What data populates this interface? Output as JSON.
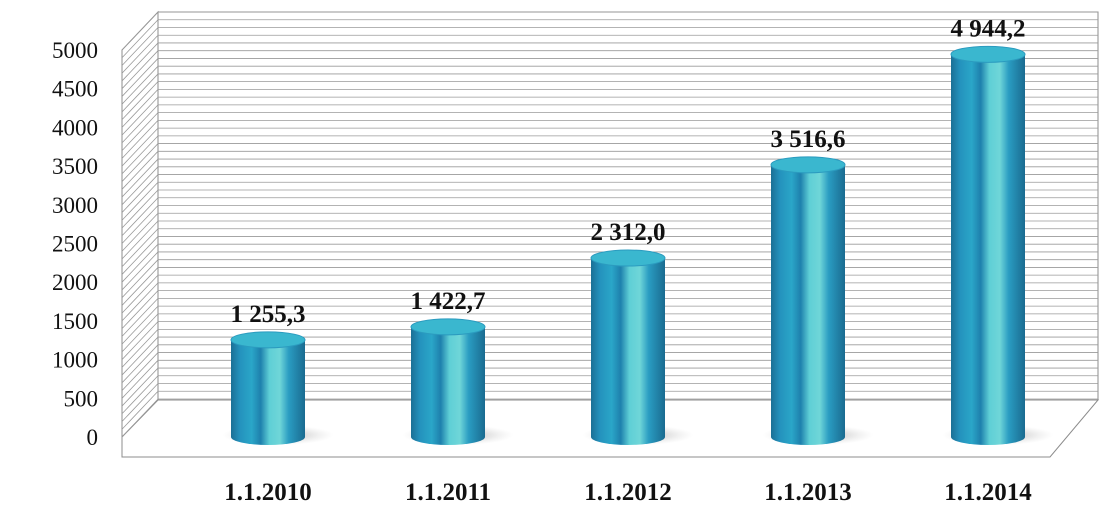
{
  "chart_data": {
    "type": "bar",
    "style": "3d-cylinder",
    "categories": [
      "1.1.2010",
      "1.1.2011",
      "1.1.2012",
      "1.1.2013",
      "1.1.2014"
    ],
    "values": [
      1255.3,
      1422.7,
      2312.0,
      3516.6,
      4944.2
    ],
    "data_labels": [
      "1 255,3",
      "1 422,7",
      "2 312,0",
      "3 516,6",
      "4 944,2"
    ],
    "y_ticks": [
      "0",
      "500",
      "1000",
      "1500",
      "2000",
      "2500",
      "3000",
      "3500",
      "4000",
      "4500",
      "5000"
    ],
    "ylim": [
      0,
      5000
    ],
    "grid": true,
    "legend": "none",
    "title": "",
    "xlabel": "",
    "ylabel": "",
    "colors": {
      "bar_dark": "#1e7fa8",
      "bar_mid": "#2aa6c8",
      "bar_light": "#6fd6d8",
      "bar_top": "#3ab7cf",
      "grid_line": "#9a9a9a",
      "wall_border": "#8c8c8c",
      "shadow": "#b8b8b8"
    }
  }
}
